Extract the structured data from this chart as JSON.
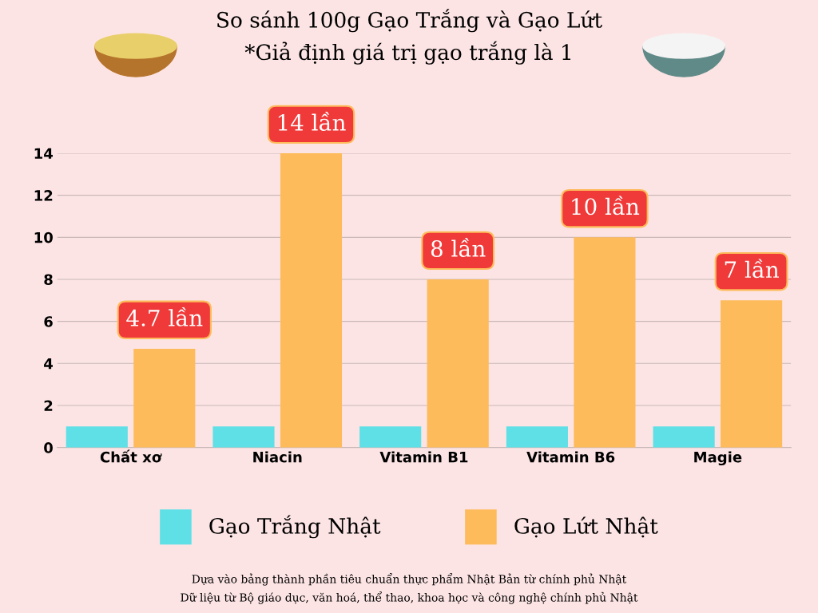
{
  "chart_data": {
    "type": "bar",
    "title": "So sánh 100g Gạo Trắng và Gạo Lứt\n*Giả định giá trị gạo trắng là 1",
    "categories": [
      "Chất xơ",
      "Niacin",
      "Vitamin B1",
      "Vitamin B6",
      "Magie"
    ],
    "series": [
      {
        "name": "Gạo Trắng Nhật",
        "color": "#5ee0e6",
        "values": [
          1,
          1,
          1,
          1,
          1
        ]
      },
      {
        "name": "Gạo Lứt Nhật",
        "color": "#fdbb5b",
        "values": [
          4.7,
          14,
          8,
          10,
          7
        ],
        "value_labels": [
          "4.7 lần",
          "14 lần",
          "8 lần",
          "10 lần",
          "7 lần"
        ]
      }
    ],
    "ylim": [
      0,
      14
    ],
    "yticks": [
      0,
      2,
      4,
      6,
      8,
      10,
      12,
      14
    ],
    "grid": "y",
    "legend": "bottom",
    "annotations": [
      "Dựa vào bảng thành phần tiêu chuẩn thực phẩm Nhật Bản từ chính phủ Nhật\nDữ liệu từ Bộ giáo dục, văn hoá, thể thao, khoa học và công nghệ chính phủ Nhật"
    ]
  }
}
